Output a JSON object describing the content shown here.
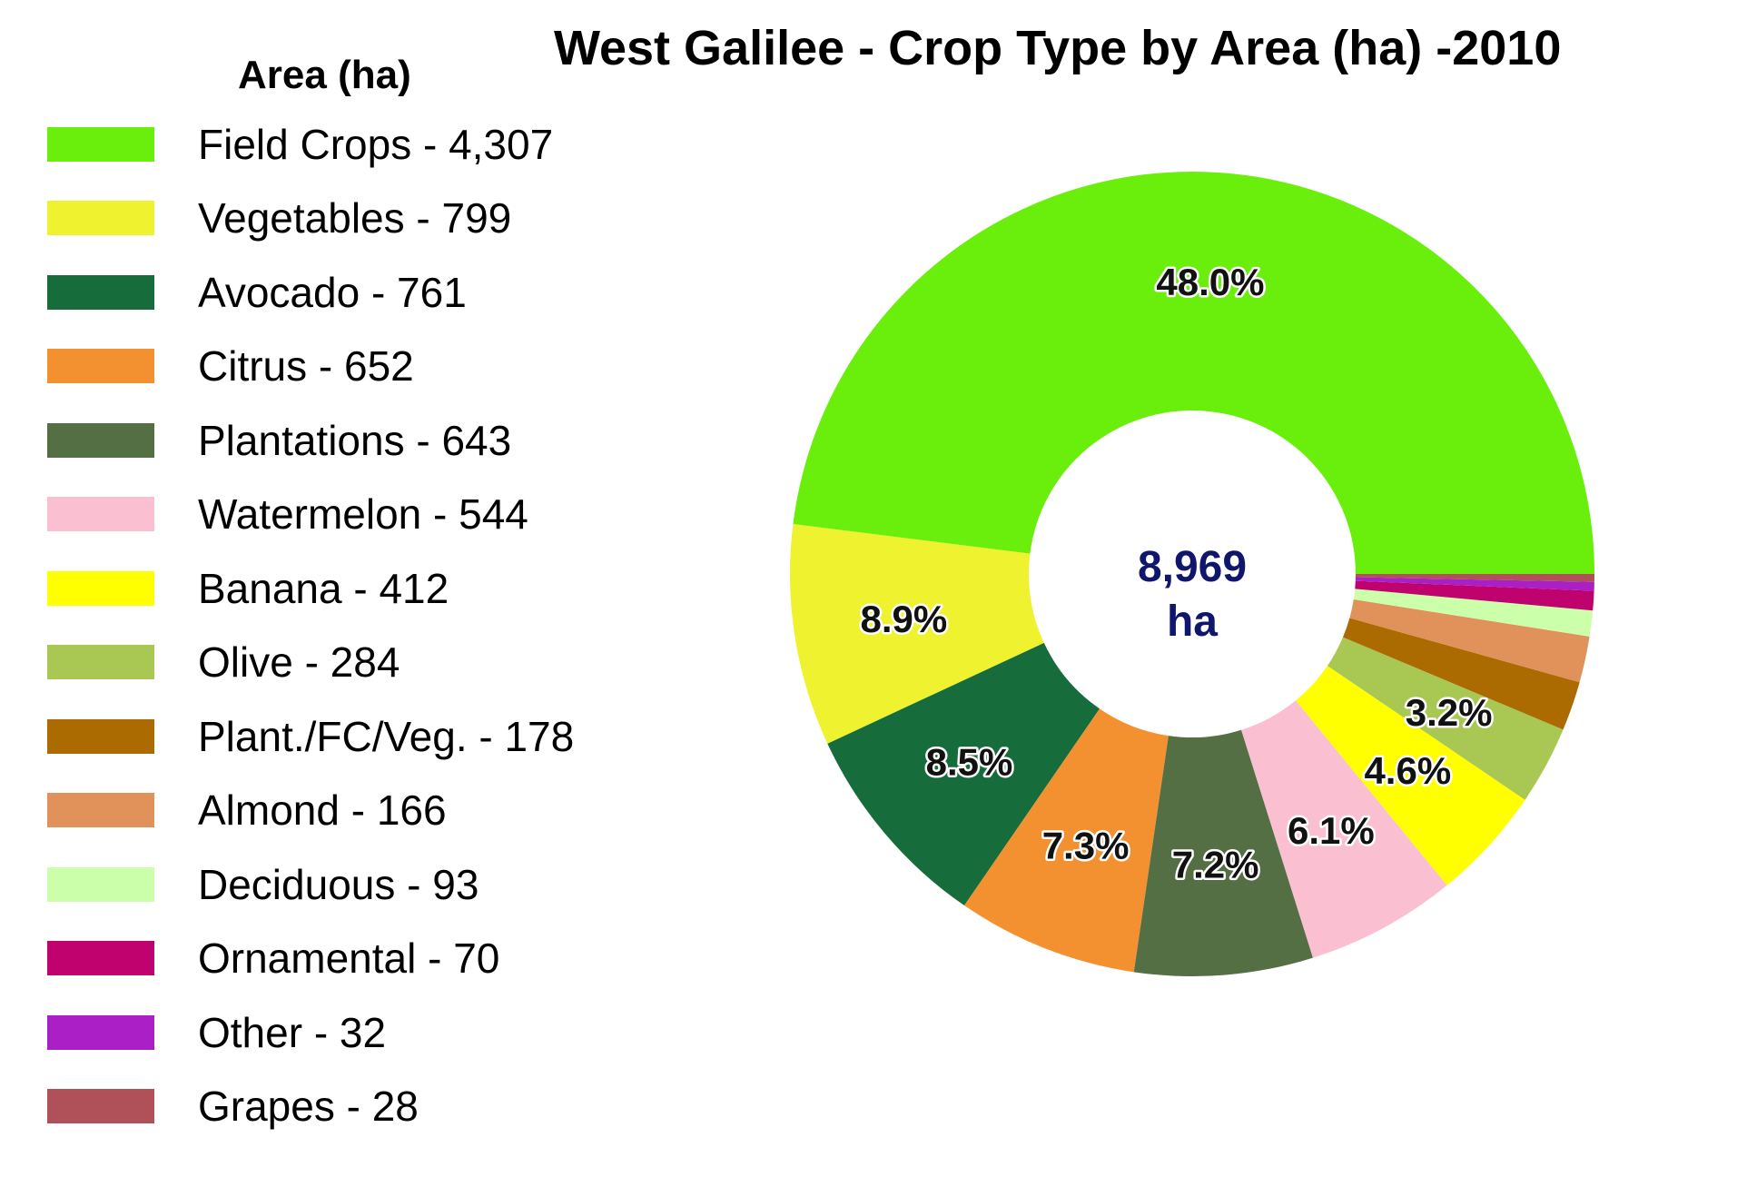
{
  "chart_data": {
    "type": "pie",
    "title": "West Galilee - Crop Type by Area (ha) -2010",
    "legend_title": "Area (ha)",
    "legend_position": "left",
    "center_label": [
      "8,969",
      "ha"
    ],
    "slices": [
      {
        "name": "Field Crops",
        "value": 4307,
        "legend_label": "Field Crops - 4,307",
        "pct_label": "48.0%",
        "color": "#6aee0c"
      },
      {
        "name": "Vegetables",
        "value": 799,
        "legend_label": "Vegetables - 799",
        "pct_label": "8.9%",
        "color": "#eff22f"
      },
      {
        "name": "Avocado",
        "value": 761,
        "legend_label": "Avocado - 761",
        "pct_label": "8.5%",
        "color": "#166d3b"
      },
      {
        "name": "Citrus",
        "value": 652,
        "legend_label": "Citrus - 652",
        "pct_label": "7.3%",
        "color": "#f39130"
      },
      {
        "name": "Plantations",
        "value": 643,
        "legend_label": "Plantations - 643",
        "pct_label": "7.2%",
        "color": "#536f43"
      },
      {
        "name": "Watermelon",
        "value": 544,
        "legend_label": "Watermelon - 544",
        "pct_label": "6.1%",
        "color": "#fac0d2"
      },
      {
        "name": "Banana",
        "value": 412,
        "legend_label": "Banana - 412",
        "pct_label": "4.6%",
        "color": "#ffff00"
      },
      {
        "name": "Olive",
        "value": 284,
        "legend_label": "Olive - 284",
        "pct_label": "3.2%",
        "color": "#a8c853"
      },
      {
        "name": "Plant./FC/Veg.",
        "value": 178,
        "legend_label": "Plant./FC/Veg. - 178",
        "pct_label": "",
        "color": "#ac6b00"
      },
      {
        "name": "Almond",
        "value": 166,
        "legend_label": "Almond - 166",
        "pct_label": "",
        "color": "#e0925a"
      },
      {
        "name": "Deciduous",
        "value": 93,
        "legend_label": "Deciduous - 93",
        "pct_label": "",
        "color": "#ccffaa"
      },
      {
        "name": "Ornamental",
        "value": 70,
        "legend_label": "Ornamental - 70",
        "pct_label": "",
        "color": "#c0026e"
      },
      {
        "name": "Other",
        "value": 32,
        "legend_label": "Other - 32",
        "pct_label": "",
        "color": "#ab1fc6"
      },
      {
        "name": "Grapes",
        "value": 28,
        "legend_label": "Grapes - 28",
        "pct_label": "",
        "color": "#b05058"
      }
    ]
  }
}
